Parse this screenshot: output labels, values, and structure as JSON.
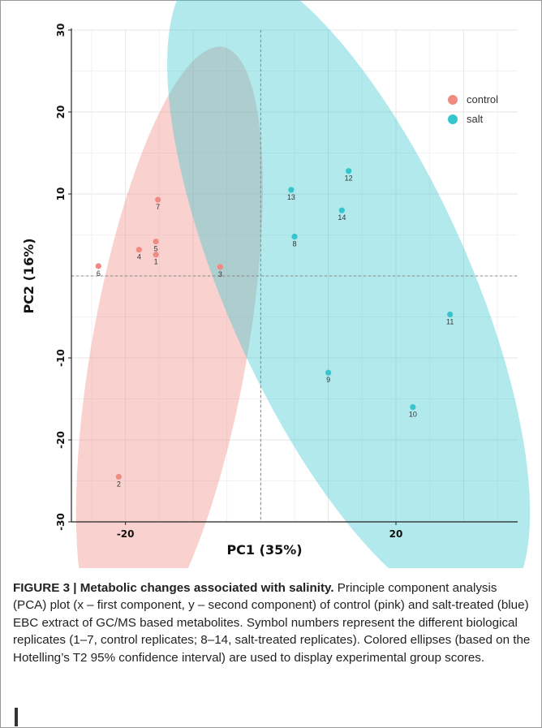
{
  "chart_data": {
    "type": "scatter",
    "xlabel": "PC1 (35%)",
    "ylabel": "PC2 (16%)",
    "xlim": [
      -28,
      38
    ],
    "ylim": [
      -30,
      30
    ],
    "x_ticks": [
      -20,
      20
    ],
    "y_ticks": [
      30,
      20,
      10,
      -10,
      -20,
      -30
    ],
    "grid": true,
    "legend_position": "top-right",
    "series": [
      {
        "name": "control",
        "color": "#f08a82",
        "points": [
          {
            "label": "1",
            "x": -15.5,
            "y": 2.6
          },
          {
            "label": "2",
            "x": -21.0,
            "y": -24.5
          },
          {
            "label": "3",
            "x": -6.0,
            "y": 1.1
          },
          {
            "label": "4",
            "x": -18.0,
            "y": 3.2
          },
          {
            "label": "5",
            "x": -15.5,
            "y": 4.2
          },
          {
            "label": "6",
            "x": -24.0,
            "y": 1.2
          },
          {
            "label": "7",
            "x": -15.2,
            "y": 9.3
          }
        ],
        "ellipse": {
          "cx": -13.5,
          "cy": -9.0,
          "rx": 11.5,
          "ry": 37.5,
          "rotation_deg": 10
        }
      },
      {
        "name": "salt",
        "color": "#35c5cc",
        "points": [
          {
            "label": "8",
            "x": 5.0,
            "y": 4.8
          },
          {
            "label": "9",
            "x": 10.0,
            "y": -11.8
          },
          {
            "label": "10",
            "x": 22.5,
            "y": -16.0
          },
          {
            "label": "11",
            "x": 28.0,
            "y": -4.7
          },
          {
            "label": "12",
            "x": 13.0,
            "y": 12.8
          },
          {
            "label": "13",
            "x": 4.5,
            "y": 10.5
          },
          {
            "label": "14",
            "x": 12.0,
            "y": 8.0
          }
        ],
        "ellipse": {
          "cx": 13.0,
          "cy": -1.5,
          "rx": 18.0,
          "ry": 43.0,
          "rotation_deg": -24
        }
      }
    ]
  },
  "caption": {
    "label": "FIGURE 3 | ",
    "title": "Metabolic changes associated with salinity.",
    "body": " Principle component analysis (PCA) plot (x – first component, y – second component) of control (pink) and salt-treated (blue) EBC extract of GC/MS based metabolites. Symbol numbers represent the different biological replicates (1–7, control replicates; 8–14, salt-treated replicates). Colored ellipses (based on the Hotelling’s T2 95% confidence interval) are used to display experimental group scores."
  }
}
